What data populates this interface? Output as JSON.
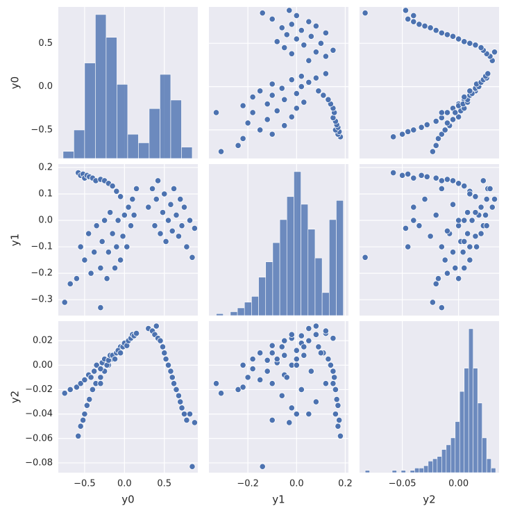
{
  "chart_data": {
    "type": "pairplot",
    "color": "#4c72b0",
    "grid": true,
    "variables": [
      {
        "name": "y0",
        "lim": [
          -0.83,
          0.92
        ],
        "xticks": [
          {
            "value": -0.5,
            "label": "−0.5"
          },
          {
            "value": 0,
            "label": "0.0"
          },
          {
            "value": 0.5,
            "label": "0.5"
          }
        ],
        "yticks": [
          {
            "value": -0.5,
            "label": "−0.5"
          },
          {
            "value": 0,
            "label": "0.0"
          },
          {
            "value": 0.5,
            "label": "0.5"
          }
        ],
        "values": [
          -0.58,
          -0.55,
          -0.52,
          -0.5,
          -0.47,
          -0.44,
          -0.4,
          -0.36,
          -0.3,
          -0.25,
          -0.2,
          -0.15,
          -0.1,
          -0.05,
          -0.75,
          -0.68,
          -0.6,
          -0.55,
          -0.5,
          -0.45,
          -0.42,
          -0.38,
          -0.35,
          -0.3,
          -0.3,
          -0.28,
          -0.25,
          -0.22,
          -0.2,
          -0.18,
          -0.15,
          -0.12,
          -0.1,
          -0.08,
          -0.05,
          -0.02,
          0.0,
          0.03,
          0.05,
          0.08,
          0.1,
          0.12,
          0.15,
          0.3,
          0.35,
          0.38,
          0.4,
          0.42,
          0.45,
          0.48,
          0.5,
          0.52,
          0.55,
          0.58,
          0.6,
          0.62,
          0.65,
          0.68,
          0.7,
          0.72,
          0.75,
          0.78,
          0.82,
          0.85,
          0.88
        ],
        "histogram": {
          "bins": [
            -0.77,
            -0.635,
            -0.5,
            -0.365,
            -0.23,
            -0.095,
            0.04,
            0.175,
            0.31,
            0.445,
            0.58,
            0.715,
            0.85
          ],
          "counts": [
            5,
            20,
            67,
            101,
            85,
            52,
            17,
            11,
            35,
            59,
            41,
            8
          ]
        }
      },
      {
        "name": "y1",
        "lim": [
          -0.36,
          0.213
        ],
        "xticks": [
          {
            "value": -0.2,
            "label": "−0.2"
          },
          {
            "value": 0,
            "label": "0.0"
          },
          0.2
        ],
        "yticks": [
          {
            "value": -0.3,
            "label": "−0.3"
          },
          {
            "value": -0.2,
            "label": "−0.2"
          },
          {
            "value": -0.1,
            "label": "−0.1"
          },
          {
            "value": 0,
            "label": "0.0"
          },
          0.1,
          0.2
        ],
        "values": [
          0.18,
          0.17,
          0.175,
          0.16,
          0.17,
          0.165,
          0.16,
          0.15,
          0.155,
          0.15,
          0.14,
          0.13,
          0.11,
          0.09,
          -0.31,
          -0.24,
          -0.22,
          -0.1,
          -0.15,
          -0.05,
          -0.2,
          -0.12,
          -0.02,
          -0.33,
          -0.18,
          -0.08,
          0.0,
          -0.22,
          -0.12,
          0.03,
          -0.05,
          -0.18,
          -0.1,
          0.0,
          -0.15,
          -0.06,
          0.02,
          -0.1,
          0.05,
          -0.02,
          0.08,
          0.02,
          0.12,
          0.05,
          0.12,
          -0.02,
          0.08,
          0.15,
          -0.05,
          0.03,
          0.1,
          -0.08,
          0.0,
          0.06,
          -0.04,
          0.12,
          0.02,
          -0.06,
          0.08,
          -0.02,
          0.05,
          -0.1,
          0.0,
          -0.14,
          -0.03
        ],
        "histogram": {
          "bins": [
            -0.33,
            -0.301,
            -0.272,
            -0.243,
            -0.214,
            -0.185,
            -0.156,
            -0.127,
            -0.098,
            -0.069,
            -0.04,
            -0.011,
            0.018,
            0.047,
            0.076,
            0.105,
            0.134,
            0.163,
            0.192
          ],
          "counts": [
            1,
            0,
            2,
            4,
            7,
            10,
            20,
            28,
            38,
            50,
            62,
            75,
            58,
            45,
            30,
            12,
            50,
            60
          ]
        }
      },
      {
        "name": "y2",
        "lim": [
          -0.088,
          0.036
        ],
        "xticks": [
          {
            "value": -0.05,
            "label": "−0.05"
          },
          {
            "value": 0,
            "label": "0.00"
          }
        ],
        "yticks": [
          {
            "value": -0.08,
            "label": "−0.08"
          },
          {
            "value": -0.06,
            "label": "−0.06"
          },
          {
            "value": -0.04,
            "label": "−0.04"
          },
          {
            "value": -0.02,
            "label": "−0.02"
          },
          {
            "value": 0,
            "label": "0.00"
          },
          0.02
        ],
        "values": [
          -0.058,
          -0.05,
          -0.045,
          -0.04,
          -0.033,
          -0.028,
          -0.02,
          -0.015,
          -0.01,
          -0.005,
          0.0,
          0.005,
          0.01,
          0.015,
          -0.023,
          -0.02,
          -0.018,
          -0.015,
          -0.012,
          -0.008,
          -0.01,
          -0.005,
          0.0,
          -0.015,
          -0.003,
          0.002,
          0.005,
          0.0,
          0.004,
          0.008,
          0.008,
          0.005,
          0.01,
          0.012,
          0.01,
          0.015,
          0.018,
          0.016,
          0.02,
          0.022,
          0.025,
          0.024,
          0.026,
          0.03,
          0.028,
          0.025,
          0.032,
          0.022,
          0.02,
          0.015,
          0.01,
          0.005,
          0.0,
          -0.005,
          -0.01,
          -0.015,
          -0.02,
          -0.025,
          -0.03,
          -0.035,
          -0.04,
          -0.045,
          -0.04,
          -0.083,
          -0.047
        ],
        "histogram": {
          "bins": [
            -0.083,
            -0.079,
            -0.075,
            -0.071,
            -0.067,
            -0.063,
            -0.059,
            -0.055,
            -0.051,
            -0.047,
            -0.043,
            -0.039,
            -0.035,
            -0.031,
            -0.027,
            -0.023,
            -0.019,
            -0.015,
            -0.011,
            -0.007,
            -0.003,
            0.001,
            0.005,
            0.009,
            0.013,
            0.017,
            0.021,
            0.025,
            0.029,
            0.033
          ],
          "counts": [
            1,
            0,
            0,
            0,
            0,
            0,
            1,
            0,
            1,
            0,
            1,
            2,
            2,
            3,
            5,
            6,
            7,
            10,
            12,
            15,
            22,
            35,
            45,
            62,
            45,
            30,
            15,
            6,
            2
          ]
        }
      }
    ]
  }
}
